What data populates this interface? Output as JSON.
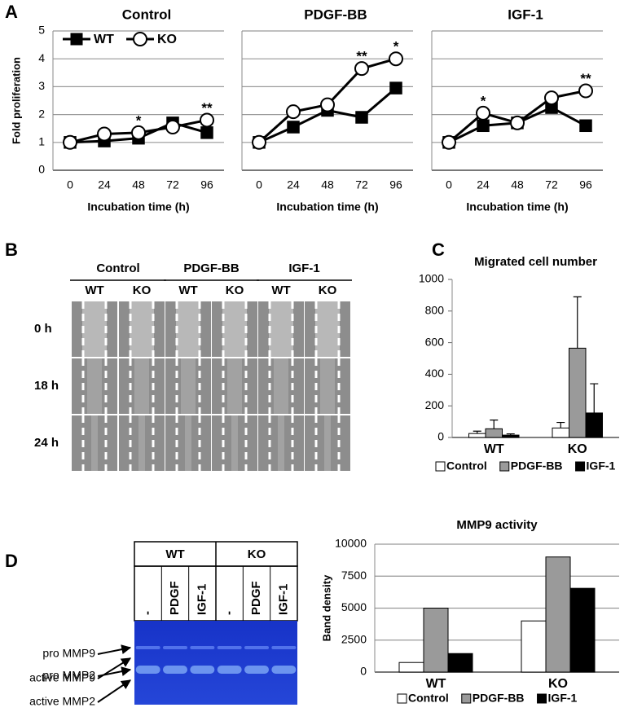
{
  "panel_labels": [
    "A",
    "B",
    "C",
    "D"
  ],
  "chart_data": [
    {
      "type": "line",
      "title": "Control",
      "x_label": "Incubation time (h)",
      "y_label": "Fold proliferation",
      "categories": [
        "0",
        "24",
        "48",
        "72",
        "96"
      ],
      "series": [
        {
          "name": "WT",
          "color": "#000000",
          "fill": "#000000",
          "marker": "square",
          "values": [
            1,
            1.05,
            1.15,
            1.7,
            1.35
          ]
        },
        {
          "name": "KO",
          "color": "#000000",
          "fill": "#ffffff",
          "marker": "circle",
          "values": [
            1,
            1.3,
            1.35,
            1.55,
            1.8
          ]
        }
      ],
      "annotations": [
        {
          "text": "*",
          "category": "48"
        },
        {
          "text": "**",
          "category": "96"
        }
      ],
      "ylim": [
        0,
        5
      ],
      "yticks": [
        0,
        1,
        2,
        3,
        4,
        5
      ],
      "ytick_labels": true,
      "grid": true,
      "legend": "top-left"
    },
    {
      "type": "line",
      "title": "PDGF-BB",
      "x_label": "Incubation time (h)",
      "categories": [
        "0",
        "24",
        "48",
        "72",
        "96"
      ],
      "series": [
        {
          "color": "#000000",
          "fill": "#000000",
          "marker": "square",
          "values": [
            1,
            1.55,
            2.15,
            1.9,
            2.95
          ]
        },
        {
          "color": "#000000",
          "fill": "#ffffff",
          "marker": "circle",
          "values": [
            1,
            2.1,
            2.35,
            3.65,
            4.0
          ]
        }
      ],
      "annotations": [
        {
          "text": "**",
          "category": "72"
        },
        {
          "text": "*",
          "category": "96"
        }
      ],
      "ylim": [
        0,
        5
      ],
      "yticks": [
        0,
        1,
        2,
        3,
        4,
        5
      ],
      "ytick_labels": false,
      "grid": true
    },
    {
      "type": "line",
      "title": "IGF-1",
      "x_label": "Incubation time (h)",
      "categories": [
        "0",
        "24",
        "48",
        "72",
        "96"
      ],
      "series": [
        {
          "color": "#000000",
          "fill": "#000000",
          "marker": "square",
          "values": [
            1,
            1.6,
            1.7,
            2.25,
            1.6
          ]
        },
        {
          "color": "#000000",
          "fill": "#ffffff",
          "marker": "circle",
          "values": [
            1,
            2.05,
            1.7,
            2.6,
            2.85
          ]
        }
      ],
      "annotations": [
        {
          "text": "*",
          "category": "24"
        },
        {
          "text": "**",
          "category": "96"
        }
      ],
      "ylim": [
        0,
        5
      ],
      "yticks": [
        0,
        1,
        2,
        3,
        4,
        5
      ],
      "ytick_labels": false,
      "grid": true
    },
    {
      "type": "bar",
      "title": "Migrated cell number",
      "categories": [
        "WT",
        "KO"
      ],
      "series": [
        {
          "name": "Control",
          "color": "#ffffff",
          "values": [
            25,
            60
          ],
          "errors": [
            15,
            35
          ]
        },
        {
          "name": "PDGF-BB",
          "color": "#9a9a9a",
          "values": [
            55,
            565
          ],
          "errors": [
            55,
            325
          ]
        },
        {
          "name": "IGF-1",
          "color": "#000000",
          "values": [
            15,
            155
          ],
          "errors": [
            8,
            185
          ]
        }
      ],
      "ylim": [
        0,
        1000
      ],
      "yticks": [
        0,
        200,
        400,
        600,
        800,
        1000
      ],
      "ytick_labels": true,
      "grid": false,
      "legend": "bottom"
    },
    {
      "type": "bar",
      "title": "MMP9 activity",
      "y_label": "Band density",
      "categories": [
        "WT",
        "KO"
      ],
      "series": [
        {
          "name": "Control",
          "color": "#ffffff",
          "values": [
            750,
            4000
          ]
        },
        {
          "name": "PDGF-BB",
          "color": "#9a9a9a",
          "values": [
            5000,
            9000
          ]
        },
        {
          "name": "IGF-1",
          "color": "#000000",
          "values": [
            1450,
            6550
          ]
        }
      ],
      "ylim": [
        0,
        10000
      ],
      "yticks": [
        0,
        2500,
        5000,
        7500,
        10000
      ],
      "ytick_labels": true,
      "grid": true,
      "legend": "bottom"
    }
  ],
  "scratch_assay": {
    "groups": [
      "Control",
      "PDGF-BB",
      "IGF-1"
    ],
    "genotypes": [
      "WT",
      "KO",
      "WT",
      "KO",
      "WT",
      "KO"
    ],
    "timepoints": [
      "0 h",
      "18 h",
      "24 h"
    ]
  },
  "zymogram": {
    "genotypes": [
      "WT",
      "KO"
    ],
    "lanes": [
      "-",
      "PDGF",
      "IGF-1",
      "-",
      "PDGF",
      "IGF-1"
    ],
    "bands": [
      "pro MMP9",
      "active MMP9",
      "pro MMP2",
      "active MMP2"
    ]
  }
}
